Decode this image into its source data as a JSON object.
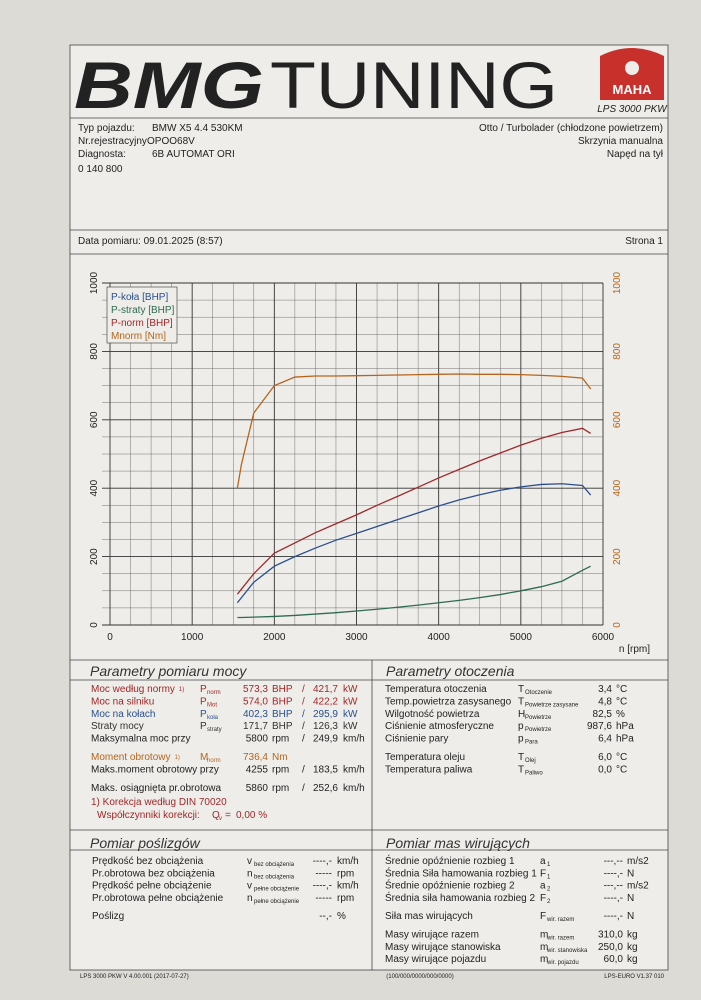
{
  "header": {
    "logo_bold": "BMG",
    "logo_light": "TUNING",
    "maha": "MAHA",
    "model": "LPS 3000 PKW"
  },
  "vehicle": {
    "left": [
      [
        "Typ pojazdu:",
        "BMW X5 4.4 530KM"
      ],
      [
        "Nr.rejestracyjny",
        "OPOO68V"
      ],
      [
        "Diagnosta:",
        "6B AUTOMAT ORI"
      ]
    ],
    "right": [
      "Otto / Turbolader (chłodzone powietrzem)",
      "Skrzynia manualna",
      "Napęd na tył"
    ],
    "number": "0 140 800",
    "date": "Data pomiaru: 09.01.2025 (8:57)",
    "page": "Strona 1"
  },
  "chart_data": {
    "type": "line",
    "xlabel": "n [rpm]",
    "x": [
      1550,
      1600,
      1750,
      2000,
      2250,
      2500,
      2750,
      3000,
      3250,
      3500,
      3750,
      4000,
      4250,
      4500,
      4750,
      5000,
      5250,
      5500,
      5750,
      5850
    ],
    "series": [
      {
        "name": "P-koła [BHP]",
        "color": "#2a4f8f",
        "values": [
          65,
          80,
          125,
          172,
          200,
          225,
          248,
          268,
          288,
          308,
          328,
          348,
          366,
          381,
          394,
          404,
          411,
          413,
          408,
          380
        ]
      },
      {
        "name": "P-straty [BHP]",
        "color": "#2f6b4f",
        "values": [
          22,
          22,
          23,
          25,
          28,
          32,
          36,
          41,
          46,
          52,
          58,
          65,
          72,
          80,
          89,
          100,
          112,
          128,
          160,
          172
        ]
      },
      {
        "name": "P-norm [BHP]",
        "color": "#a0282a",
        "values": [
          90,
          105,
          150,
          210,
          240,
          270,
          296,
          322,
          350,
          376,
          403,
          430,
          455,
          480,
          503,
          526,
          546,
          563,
          575,
          560
        ]
      },
      {
        "name": "Mnorm [Nm]",
        "color": "#b5651d",
        "axis": "y2",
        "values": [
          400,
          470,
          620,
          700,
          725,
          728,
          728,
          729,
          730,
          731,
          732,
          733,
          734,
          733,
          733,
          732,
          730,
          727,
          722,
          690
        ]
      }
    ],
    "xlim": [
      0,
      6000
    ],
    "xticks": [
      0,
      1000,
      2000,
      3000,
      4000,
      5000,
      6000
    ],
    "ylim": [
      0,
      1000
    ],
    "yticks": [
      0,
      200,
      400,
      600,
      800,
      1000
    ],
    "y2lim": [
      0,
      1000
    ],
    "y2ticks": [
      0,
      200,
      400,
      600,
      800,
      1000
    ],
    "y2color": "#b5651d",
    "grid": true,
    "legend": "upper left"
  },
  "power": {
    "title": "Parametry pomiaru mocy",
    "groups": [
      [
        {
          "label": "Moc według normy",
          "note": "1)",
          "sym": "P",
          "sub": "norm",
          "v1": "573,3",
          "u1": "BHP",
          "sep": "/",
          "v2": "421,7",
          "u2": "kW",
          "color": "#a0282a"
        },
        {
          "label": "Moc na silniku",
          "sym": "P",
          "sub": "Mot",
          "v1": "574,0",
          "u1": "BHP",
          "sep": "/",
          "v2": "422,2",
          "u2": "kW",
          "color": "#a0282a"
        },
        {
          "label": "Moc na kołach",
          "sym": "P",
          "sub": "koła",
          "v1": "402,3",
          "u1": "BHP",
          "sep": "/",
          "v2": "295,9",
          "u2": "kW",
          "color": "#2a4f8f"
        },
        {
          "label": "Straty mocy",
          "sym": "P",
          "sub": "straty",
          "v1": "171,7",
          "u1": "BHP",
          "sep": "/",
          "v2": "126,3",
          "u2": "kW",
          "color": "#333333"
        },
        {
          "label": "Maksymalna moc przy",
          "v1": "5800",
          "u1": "rpm",
          "sep": "/",
          "v2": "249,9",
          "u2": "km/h",
          "color": "#222222"
        }
      ],
      [
        {
          "label": "Moment obrotowy",
          "note": "1)",
          "sym": "M",
          "sub": "norm",
          "v1": "736,4",
          "u1": "Nm",
          "color": "#b5651d"
        },
        {
          "label": "Maks.moment obrotowy przy",
          "v1": "4255",
          "u1": "rpm",
          "sep": "/",
          "v2": "183,5",
          "u2": "km/h",
          "color": "#222222"
        }
      ],
      [
        {
          "label": "Maks. osiągnięta pr.obrotowa",
          "v1": "5860",
          "u1": "rpm",
          "sep": "/",
          "v2": "252,6",
          "u2": "km/h",
          "color": "#222222"
        }
      ]
    ],
    "note": "1) Korekcja według DIN 70020",
    "correction": {
      "label": "Współczynniki korekcji:",
      "sym": "Q",
      "sub": "v",
      "eq": "=",
      "value": "0,00 %"
    }
  },
  "ambient": {
    "title": "Parametry otoczenia",
    "groups": [
      [
        {
          "label": "Temperatura otoczenia",
          "sym": "T",
          "sub": "Otoczenie",
          "v1": "3,4",
          "u1": "°C"
        },
        {
          "label": "Temp.powietrza zasysanego",
          "sym": "T",
          "sub": "Powietrze zasysane",
          "v1": "4,8",
          "u1": "°C"
        },
        {
          "label": "Wilgotność powietrza",
          "sym": "H",
          "sub": "Powietrze",
          "v1": "82,5",
          "u1": "%"
        },
        {
          "label": "Ciśnienie atmosferyczne",
          "sym": "p",
          "sub": "Powietrze",
          "v1": "987,6",
          "u1": "hPa"
        },
        {
          "label": "Ciśnienie pary",
          "sym": "p",
          "sub": "Para",
          "v1": "6,4",
          "u1": "hPa"
        }
      ],
      [
        {
          "label": "Temperatura oleju",
          "sym": "T",
          "sub": "Olej",
          "v1": "6,0",
          "u1": "°C"
        },
        {
          "label": "Temperatura paliwa",
          "sym": "T",
          "sub": "Paliwo",
          "v1": "0,0",
          "u1": "°C"
        }
      ]
    ]
  },
  "slip": {
    "title": "Pomiar poślizgów",
    "groups": [
      [
        {
          "label": "Prędkość bez obciążenia",
          "sym": "v",
          "sub": "bez obciążenia",
          "v1": "----,-",
          "u1": "km/h"
        },
        {
          "label": "Pr.obrotowa bez obciążenia",
          "sym": "n",
          "sub": "bez obciążenia",
          "v1": "-----",
          "u1": "rpm"
        },
        {
          "label": "Prędkość pełne obciążenie",
          "sym": "v",
          "sub": "pełne obciążenie",
          "v1": "----,-",
          "u1": "km/h"
        },
        {
          "label": "Pr.obrotowa pełne obciążenie",
          "sym": "n",
          "sub": "pełne obciążenie",
          "v1": "-----",
          "u1": "rpm"
        }
      ],
      [
        {
          "label": "Poślizg",
          "v1": "--,-",
          "u1": "%"
        }
      ]
    ]
  },
  "masses": {
    "title": "Pomiar mas wirujących",
    "groups": [
      [
        {
          "label": "Średnie opóźnienie rozbieg 1",
          "sym": "a",
          "sub": "1",
          "v1": "---,--",
          "u1": "m/s2"
        },
        {
          "label": "Średnia Siła hamowania rozbieg 1",
          "sym": "F",
          "sub": "1",
          "v1": "----,-",
          "u1": "N"
        },
        {
          "label": "Średnie opóźnienie rozbieg 2",
          "sym": "a",
          "sub": "2",
          "v1": "---,--",
          "u1": "m/s2"
        },
        {
          "label": "Średnia siła hamowania rozbieg 2",
          "sym": "F",
          "sub": "2",
          "v1": "----,-",
          "u1": "N"
        }
      ],
      [
        {
          "label": "Siła mas wirujących",
          "sym": "F",
          "sub": "wir. razem",
          "v1": "----,-",
          "u1": "N"
        }
      ],
      [
        {
          "label": "Masy wirujące razem",
          "sym": "m",
          "sub": "wir. razem",
          "v1": "310,0",
          "u1": "kg"
        },
        {
          "label": "Masy wirujące stanowiska",
          "sym": "m",
          "sub": "wir. stanowiska",
          "v1": "250,0",
          "u1": "kg"
        },
        {
          "label": "Masy wirujące pojazdu",
          "sym": "m",
          "sub": "wir. pojazdu",
          "v1": "60,0",
          "u1": "kg"
        }
      ]
    ]
  },
  "footer": {
    "left": "LPS 3000 PKW V 4.00.001 (2017-07-27)",
    "center": "(100/000/0000/000/0000)",
    "right": "LPS-EURO V1.37 010"
  }
}
